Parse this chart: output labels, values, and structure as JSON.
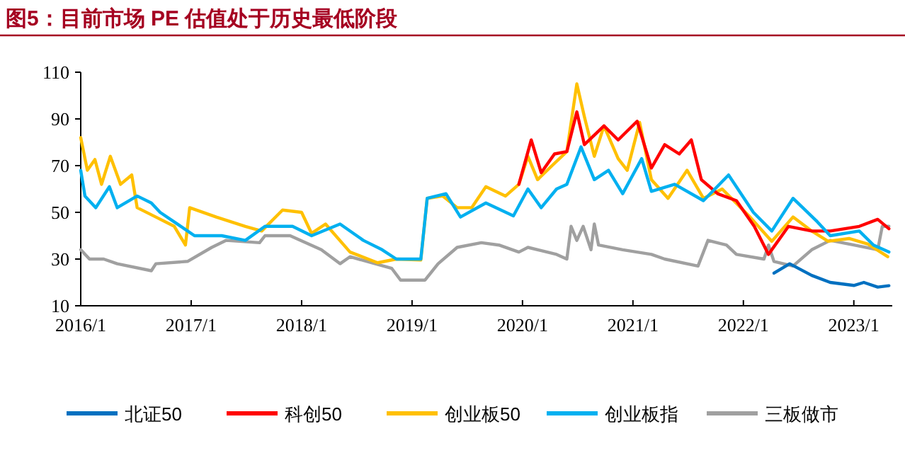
{
  "chart_data": {
    "type": "line",
    "title": "图5：目前市场 PE 估值处于历史最低阶段",
    "xlim": [
      "2016-01-01",
      "2023-05-08"
    ],
    "xticks": [
      {
        "value": "2016-01-01",
        "label": "2016/1"
      },
      {
        "value": "2017-01-01",
        "label": "2017/1"
      },
      {
        "value": "2018-01-01",
        "label": "2018/1"
      },
      {
        "value": "2019-01-01",
        "label": "2019/1"
      },
      {
        "value": "2020-01-01",
        "label": "2020/1"
      },
      {
        "value": "2021-01-01",
        "label": "2021/1"
      },
      {
        "value": "2022-01-01",
        "label": "2022/1"
      },
      {
        "value": "2023-01-01",
        "label": "2023/1"
      }
    ],
    "ylim": [
      10,
      110
    ],
    "yticks": [
      10,
      30,
      50,
      70,
      90,
      110
    ],
    "grid": false,
    "legend": "bottom",
    "marker": "none",
    "line_style": "solid",
    "series": [
      {
        "name": "北证50",
        "color": "#0070c0",
        "x": [
          "2022-04-12",
          "2022-06-03",
          "2022-08-15",
          "2022-10-15",
          "2023-01-01",
          "2023-02-03",
          "2023-03-21",
          "2023-04-27"
        ],
        "values": [
          24,
          28,
          23,
          20,
          18.7,
          20,
          18,
          18.6
        ]
      },
      {
        "name": "科创50",
        "color": "#ff0000",
        "x": [
          "2019-12-20",
          "2020-01-30",
          "2020-03-03",
          "2020-04-16",
          "2020-05-27",
          "2020-06-29",
          "2020-07-24",
          "2020-09-27",
          "2020-11-13",
          "2021-01-15",
          "2021-03-03",
          "2021-04-16",
          "2021-06-03",
          "2021-07-13",
          "2021-08-15",
          "2021-10-08",
          "2021-12-09",
          "2022-02-06",
          "2022-03-25",
          "2022-05-30",
          "2022-08-15",
          "2022-10-15",
          "2023-01-19",
          "2023-03-21",
          "2023-04-27"
        ],
        "values": [
          62,
          81,
          67,
          75,
          76,
          93,
          79,
          87,
          81,
          89,
          69,
          79,
          75,
          81,
          64,
          58,
          55,
          44,
          32,
          44,
          42,
          42,
          44,
          47,
          43
        ]
      },
      {
        "name": "创业板50",
        "color": "#ffc000",
        "x": [
          "2016-01-01",
          "2016-01-23",
          "2016-02-17",
          "2016-03-10",
          "2016-04-08",
          "2016-05-12",
          "2016-06-18",
          "2016-07-06",
          "2016-09-06",
          "2016-11-06",
          "2016-12-13",
          "2016-12-27",
          "2017-03-25",
          "2017-06-29",
          "2017-08-22",
          "2017-10-30",
          "2018-01-01",
          "2018-02-03",
          "2018-03-21",
          "2018-06-10",
          "2018-09-09",
          "2018-11-10",
          "2019-01-30",
          "2019-02-20",
          "2019-04-12",
          "2019-05-30",
          "2019-07-17",
          "2019-09-02",
          "2019-11-06",
          "2019-12-20",
          "2020-01-19",
          "2020-02-20",
          "2020-04-08",
          "2020-05-27",
          "2020-06-29",
          "2020-07-24",
          "2020-08-26",
          "2020-09-27",
          "2020-11-13",
          "2020-12-13",
          "2021-01-23",
          "2021-03-03",
          "2021-04-27",
          "2021-06-29",
          "2021-08-22",
          "2021-10-23",
          "2022-01-23",
          "2022-04-05",
          "2022-06-14",
          "2022-08-15",
          "2022-10-08",
          "2022-12-16",
          "2023-02-17",
          "2023-04-23"
        ],
        "values": [
          82,
          68,
          72.6,
          62,
          74,
          62,
          66,
          52,
          48,
          44,
          36,
          52,
          48,
          44,
          42,
          51,
          50,
          41,
          45,
          33,
          28.4,
          30,
          29.6,
          56,
          57,
          52,
          52,
          61,
          57,
          62,
          74,
          64,
          70,
          76,
          105,
          91,
          74,
          87,
          73,
          68,
          88.5,
          64,
          56,
          68,
          56,
          60,
          48,
          37.6,
          48,
          42,
          37.6,
          38.8,
          36.4,
          31
        ]
      },
      {
        "name": "创业板指",
        "color": "#00b0f0",
        "x": [
          "2016-01-01",
          "2016-01-15",
          "2016-02-20",
          "2016-04-05",
          "2016-05-01",
          "2016-07-06",
          "2016-08-22",
          "2016-09-20",
          "2016-12-09",
          "2017-01-12",
          "2017-04-12",
          "2017-06-29",
          "2017-09-02",
          "2017-12-02",
          "2018-02-03",
          "2018-05-08",
          "2018-07-24",
          "2018-09-24",
          "2018-11-10",
          "2019-01-30",
          "2019-02-20",
          "2019-04-23",
          "2019-06-10",
          "2019-09-02",
          "2019-12-02",
          "2020-01-19",
          "2020-03-03",
          "2020-04-23",
          "2020-05-27",
          "2020-07-13",
          "2020-08-26",
          "2020-10-12",
          "2020-11-28",
          "2021-01-30",
          "2021-03-03",
          "2021-05-19",
          "2021-08-22",
          "2021-11-13",
          "2022-02-03",
          "2022-04-05",
          "2022-06-14",
          "2022-09-02",
          "2022-10-15",
          "2023-01-19",
          "2023-03-07",
          "2023-04-27"
        ],
        "values": [
          68,
          57,
          52,
          61,
          52,
          57,
          54,
          50,
          43,
          40,
          40,
          38,
          44,
          44,
          40,
          45,
          38,
          34,
          30,
          30,
          56,
          58,
          48,
          54,
          48.5,
          60,
          52,
          60,
          62,
          78,
          64,
          68,
          58,
          73,
          59,
          62,
          55,
          66,
          50,
          42,
          56,
          46,
          40,
          42,
          36,
          33
        ]
      },
      {
        "name": "三板做市",
        "color": "#a0a0a0",
        "x": [
          "2016-01-01",
          "2016-01-30",
          "2016-03-17",
          "2016-05-01",
          "2016-08-22",
          "2016-09-06",
          "2016-12-20",
          "2017-03-10",
          "2017-04-27",
          "2017-08-15",
          "2017-09-02",
          "2017-11-24",
          "2018-03-07",
          "2018-05-08",
          "2018-06-10",
          "2018-10-26",
          "2018-11-24",
          "2019-02-13",
          "2019-03-28",
          "2019-05-30",
          "2019-08-18",
          "2019-10-15",
          "2019-12-20",
          "2020-01-19",
          "2020-04-23",
          "2020-05-27",
          "2020-06-10",
          "2020-06-29",
          "2020-07-20",
          "2020-08-15",
          "2020-08-26",
          "2020-09-09",
          "2020-11-28",
          "2021-03-03",
          "2021-04-16",
          "2021-08-04",
          "2021-09-06",
          "2021-11-06",
          "2021-12-09",
          "2022-03-10",
          "2022-03-25",
          "2022-04-12",
          "2022-06-14",
          "2022-08-15",
          "2022-10-15",
          "2023-01-01",
          "2023-03-21",
          "2023-04-05",
          "2023-04-27"
        ],
        "values": [
          34,
          30,
          30,
          28,
          25,
          28,
          29,
          35,
          38,
          37,
          40,
          40,
          34,
          28,
          31,
          26,
          21,
          21,
          28,
          35,
          37,
          36,
          33,
          35,
          32,
          30,
          44,
          38,
          44,
          34,
          45,
          36,
          34,
          32,
          30,
          27,
          38,
          36,
          32,
          30,
          36,
          29,
          27,
          34,
          38,
          36,
          34,
          44,
          44
        ]
      }
    ]
  }
}
